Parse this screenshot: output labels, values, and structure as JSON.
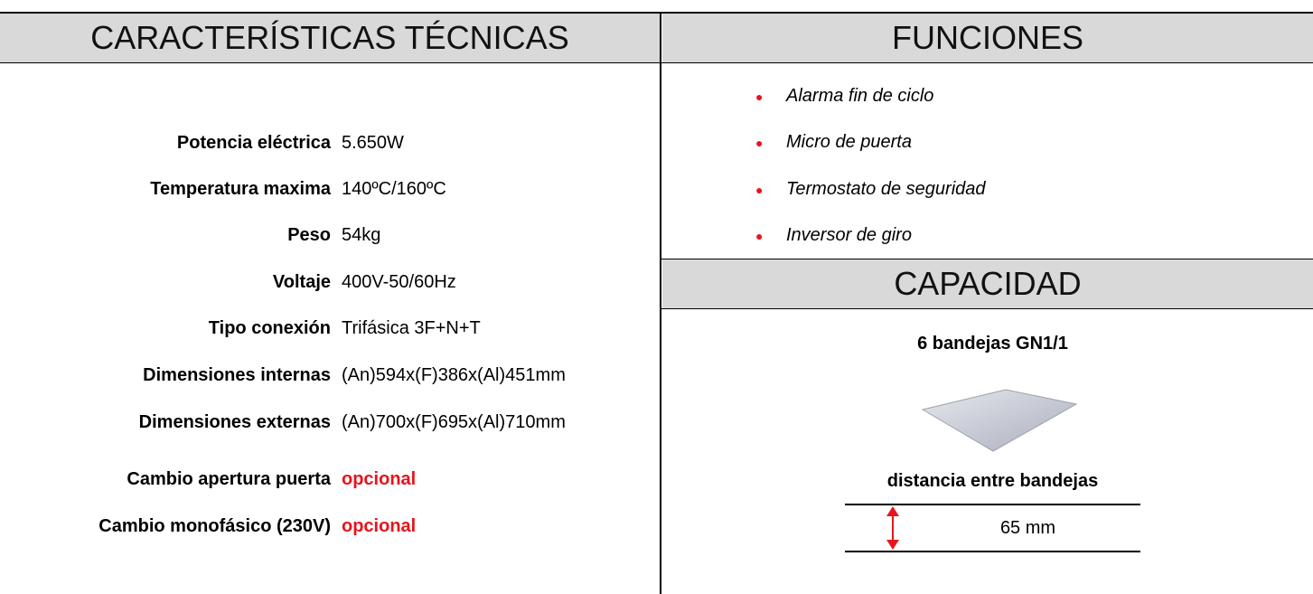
{
  "specs": {
    "title": "CARACTERÍSTICAS TÉCNICAS",
    "rows": [
      {
        "label": "Potencia eléctrica",
        "value": "5.650W"
      },
      {
        "label": "Temperatura maxima",
        "value": "140ºC/160ºC"
      },
      {
        "label": "Peso",
        "value": "54kg"
      },
      {
        "label": "Voltaje",
        "value": "400V-50/60Hz"
      },
      {
        "label": "Tipo conexión",
        "value": "Trifásica 3F+N+T"
      },
      {
        "label": "Dimensiones internas",
        "value": "(An)594x(F)386x(Al)451mm"
      },
      {
        "label": "Dimensiones externas",
        "value": "(An)700x(F)695x(Al)710mm"
      },
      {
        "label": "Cambio apertura puerta",
        "value": "opcional",
        "color": "#e8141b"
      },
      {
        "label": "Cambio monofásico (230V)",
        "value": "opcional",
        "color": "#e8141b"
      }
    ]
  },
  "functions": {
    "title": "FUNCIONES",
    "bullet_color": "#e8141b",
    "items": [
      "Alarma fin de ciclo",
      "Micro de puerta",
      "Termostato de seguridad",
      "Inversor de giro"
    ]
  },
  "capacity": {
    "title": "CAPACIDAD",
    "trays": "6 bandejas GN1/1",
    "distance_label": "distancia entre bandejas",
    "distance": "65 mm"
  }
}
